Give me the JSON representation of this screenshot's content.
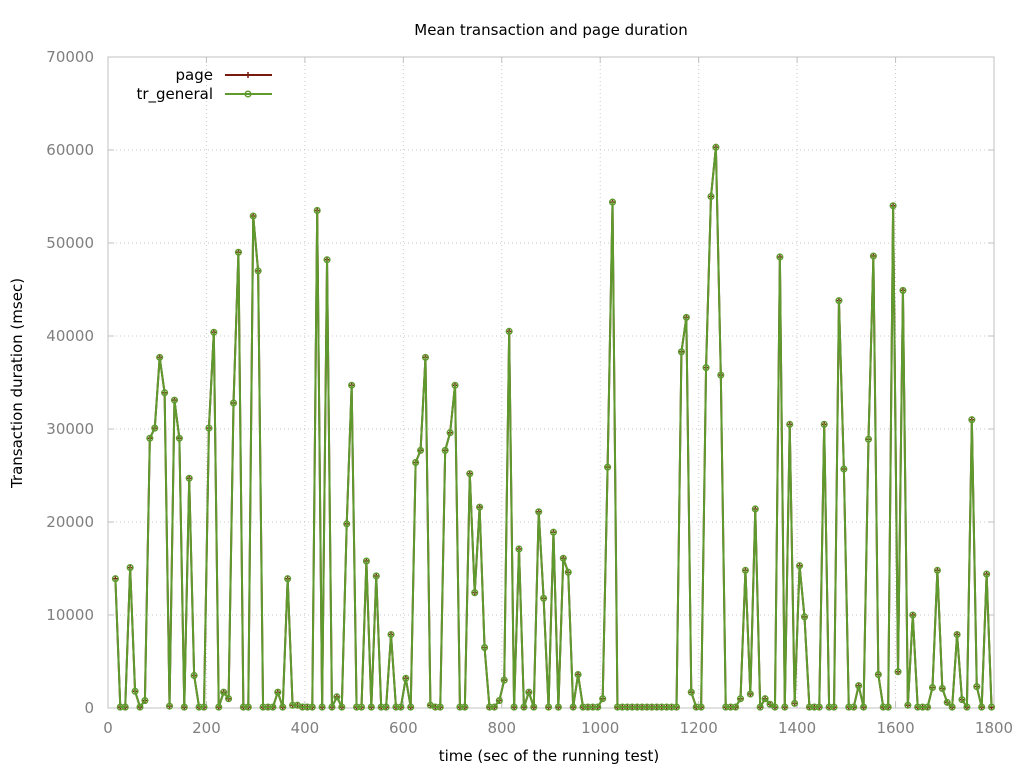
{
  "chart_data": {
    "type": "line",
    "title": "Mean transaction and page duration",
    "xlabel": "time (sec of the running test)",
    "ylabel": "Transaction duration (msec)",
    "xlim": [
      0,
      1800
    ],
    "ylim": [
      0,
      70000
    ],
    "x_ticks": [
      0,
      200,
      400,
      600,
      800,
      1000,
      1200,
      1400,
      1600,
      1800
    ],
    "y_ticks": [
      0,
      10000,
      20000,
      30000,
      40000,
      50000,
      60000,
      70000
    ],
    "grid": true,
    "legend_position": "top-left",
    "x": [
      15,
      25,
      35,
      45,
      55,
      65,
      75,
      85,
      95,
      105,
      115,
      125,
      135,
      145,
      155,
      165,
      175,
      185,
      195,
      205,
      215,
      225,
      235,
      245,
      255,
      265,
      275,
      285,
      295,
      305,
      315,
      325,
      335,
      345,
      355,
      365,
      375,
      385,
      395,
      405,
      415,
      425,
      435,
      445,
      455,
      465,
      475,
      485,
      495,
      505,
      515,
      525,
      535,
      545,
      555,
      565,
      575,
      585,
      595,
      605,
      615,
      625,
      635,
      645,
      655,
      665,
      675,
      685,
      695,
      705,
      715,
      725,
      735,
      745,
      755,
      765,
      775,
      785,
      795,
      805,
      815,
      825,
      835,
      845,
      855,
      865,
      875,
      885,
      895,
      905,
      915,
      925,
      935,
      945,
      955,
      965,
      975,
      985,
      995,
      1005,
      1015,
      1025,
      1035,
      1045,
      1055,
      1065,
      1075,
      1085,
      1095,
      1105,
      1115,
      1125,
      1135,
      1145,
      1155,
      1165,
      1175,
      1185,
      1195,
      1205,
      1215,
      1225,
      1235,
      1245,
      1255,
      1265,
      1275,
      1285,
      1295,
      1305,
      1315,
      1325,
      1335,
      1345,
      1355,
      1365,
      1375,
      1385,
      1395,
      1405,
      1415,
      1425,
      1435,
      1445,
      1455,
      1465,
      1475,
      1485,
      1495,
      1505,
      1515,
      1525,
      1535,
      1545,
      1555,
      1565,
      1575,
      1585,
      1595,
      1605,
      1615,
      1625,
      1635,
      1645,
      1655,
      1665,
      1675,
      1685,
      1695,
      1705,
      1715,
      1725,
      1735,
      1745,
      1755,
      1765,
      1775,
      1785,
      1795
    ],
    "series": [
      {
        "name": "page",
        "color": "#7a1a0e",
        "marker": "plus",
        "values": [
          13900,
          100,
          100,
          15100,
          1800,
          100,
          800,
          29000,
          30100,
          37700,
          33900,
          200,
          33100,
          29000,
          100,
          24700,
          3500,
          100,
          100,
          30100,
          40400,
          100,
          1700,
          1000,
          32800,
          49000,
          100,
          100,
          52900,
          47000,
          100,
          100,
          100,
          1700,
          100,
          13900,
          300,
          300,
          100,
          100,
          100,
          53500,
          100,
          48200,
          100,
          1200,
          100,
          19800,
          34700,
          100,
          100,
          15800,
          100,
          14200,
          100,
          100,
          7900,
          100,
          100,
          3200,
          100,
          26400,
          27700,
          37700,
          300,
          100,
          100,
          27700,
          29600,
          34700,
          100,
          100,
          25200,
          12400,
          21600,
          6500,
          100,
          100,
          800,
          3000,
          40500,
          100,
          17100,
          100,
          1700,
          100,
          21100,
          11800,
          100,
          18900,
          100,
          16100,
          14600,
          100,
          3600,
          100,
          100,
          100,
          100,
          1000,
          25900,
          54400,
          100,
          100,
          100,
          100,
          100,
          100,
          100,
          100,
          100,
          100,
          100,
          100,
          100,
          38300,
          42000,
          1700,
          100,
          100,
          36600,
          55000,
          60300,
          35800,
          100,
          100,
          100,
          1000,
          14800,
          1500,
          21400,
          100,
          1000,
          400,
          100,
          48500,
          100,
          30500,
          500,
          15300,
          9800,
          100,
          100,
          100,
          30500,
          100,
          100,
          43800,
          25700,
          100,
          100,
          2400,
          100,
          28900,
          48600,
          3600,
          100,
          100,
          54000,
          3900,
          44900,
          300,
          10000,
          100,
          100,
          100,
          2200,
          14800,
          2100,
          600,
          100,
          7900,
          900,
          100,
          31000,
          2300,
          100,
          14400,
          100
        ]
      },
      {
        "name": "tr_general",
        "color": "#5f9a2e",
        "marker": "circle",
        "values": [
          13900,
          100,
          100,
          15100,
          1800,
          100,
          800,
          29000,
          30100,
          37700,
          33900,
          200,
          33100,
          29000,
          100,
          24700,
          3500,
          100,
          100,
          30100,
          40400,
          100,
          1700,
          1000,
          32800,
          49000,
          100,
          100,
          52900,
          47000,
          100,
          100,
          100,
          1700,
          100,
          13900,
          300,
          300,
          100,
          100,
          100,
          53500,
          100,
          48200,
          100,
          1200,
          100,
          19800,
          34700,
          100,
          100,
          15800,
          100,
          14200,
          100,
          100,
          7900,
          100,
          100,
          3200,
          100,
          26400,
          27700,
          37700,
          300,
          100,
          100,
          27700,
          29600,
          34700,
          100,
          100,
          25200,
          12400,
          21600,
          6500,
          100,
          100,
          800,
          3000,
          40500,
          100,
          17100,
          100,
          1700,
          100,
          21100,
          11800,
          100,
          18900,
          100,
          16100,
          14600,
          100,
          3600,
          100,
          100,
          100,
          100,
          1000,
          25900,
          54400,
          100,
          100,
          100,
          100,
          100,
          100,
          100,
          100,
          100,
          100,
          100,
          100,
          100,
          38300,
          42000,
          1700,
          100,
          100,
          36600,
          55000,
          60300,
          35800,
          100,
          100,
          100,
          1000,
          14800,
          1500,
          21400,
          100,
          1000,
          400,
          100,
          48500,
          100,
          30500,
          500,
          15300,
          9800,
          100,
          100,
          100,
          30500,
          100,
          100,
          43800,
          25700,
          100,
          100,
          2400,
          100,
          28900,
          48600,
          3600,
          100,
          100,
          54000,
          3900,
          44900,
          300,
          10000,
          100,
          100,
          100,
          2200,
          14800,
          2100,
          600,
          100,
          7900,
          900,
          100,
          31000,
          2300,
          100,
          14400,
          100
        ]
      }
    ]
  }
}
